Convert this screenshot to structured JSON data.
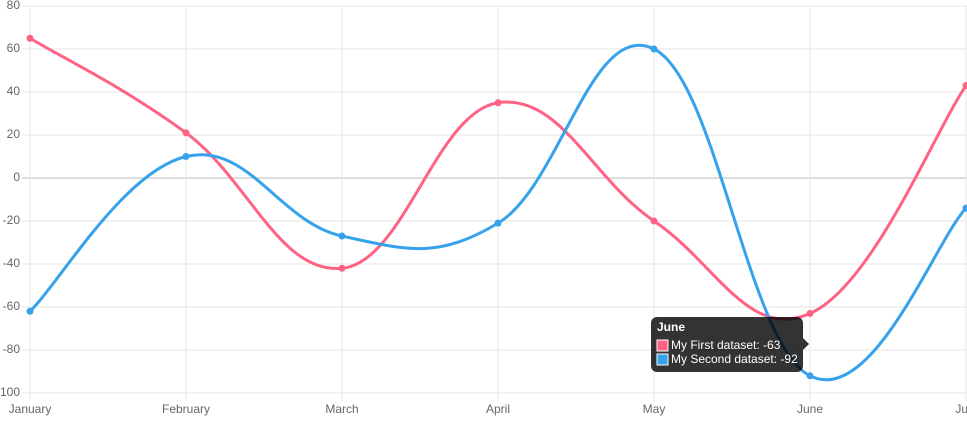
{
  "chart_data": {
    "type": "line",
    "categories": [
      "January",
      "February",
      "March",
      "April",
      "May",
      "June",
      "July"
    ],
    "series": [
      {
        "name": "My First dataset",
        "color": "#ff6384",
        "values": [
          65,
          21,
          -42,
          35,
          -20,
          -63,
          43
        ]
      },
      {
        "name": "My Second dataset",
        "color": "#36a2eb",
        "values": [
          -62,
          10,
          -27,
          -21,
          60,
          -92,
          -14
        ]
      }
    ],
    "ylim": [
      -100,
      80
    ],
    "yticks": [
      -100,
      -80,
      -60,
      -40,
      -20,
      0,
      20,
      40,
      60,
      80
    ],
    "grid": true,
    "tooltip": {
      "title": "June",
      "lines": [
        "My First dataset: -63",
        "My Second dataset: -92"
      ]
    }
  }
}
